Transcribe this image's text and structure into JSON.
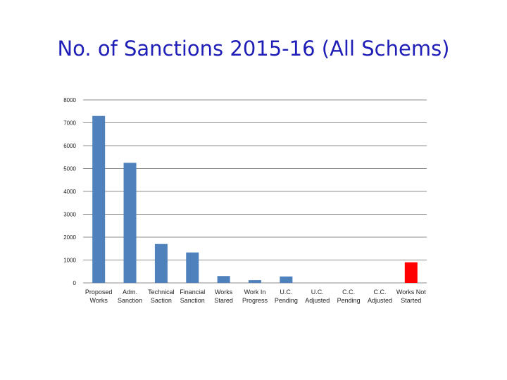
{
  "title": "No. of Sanctions 2015-16 (All Schems)",
  "chart_data": {
    "type": "bar",
    "title": "No. of Sanctions 2015-16 (All Schems)",
    "categories": [
      [
        "Proposed",
        "Works"
      ],
      [
        "Adm.",
        "Sanction"
      ],
      [
        "Technical",
        "Saction"
      ],
      [
        "Financial",
        "Sanction"
      ],
      [
        "Works",
        "Stared"
      ],
      [
        "Work In",
        "Progress"
      ],
      [
        "U.C.",
        "Pending"
      ],
      [
        "U.C.",
        "Adjusted"
      ],
      [
        "C.C.",
        "Pending"
      ],
      [
        "C.C.",
        "Adjusted"
      ],
      [
        "Works Not",
        "Started"
      ]
    ],
    "values": [
      7300,
      5250,
      1700,
      1330,
      300,
      120,
      280,
      0,
      0,
      0,
      900
    ],
    "bar_colors": [
      "#4f81bd",
      "#4f81bd",
      "#4f81bd",
      "#4f81bd",
      "#4f81bd",
      "#4f81bd",
      "#4f81bd",
      "#4f81bd",
      "#4f81bd",
      "#4f81bd",
      "#ff0000"
    ],
    "ylim": [
      0,
      8000
    ],
    "yticks": [
      0,
      1000,
      2000,
      3000,
      4000,
      5000,
      6000,
      7000,
      8000
    ],
    "grid": true,
    "legend": "none",
    "xlabel": "",
    "ylabel": ""
  }
}
